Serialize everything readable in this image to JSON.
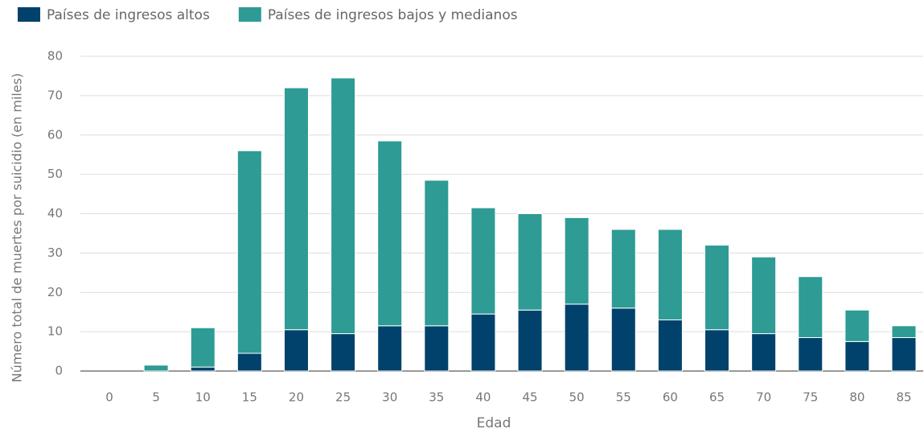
{
  "chart_data": {
    "type": "stacked_bar",
    "x_label": "Edad",
    "y_label": "Número total de muertes por suicidio (en miles)",
    "categories": [
      "0",
      "5",
      "10",
      "15",
      "20",
      "25",
      "30",
      "35",
      "40",
      "45",
      "50",
      "55",
      "60",
      "65",
      "70",
      "75",
      "80",
      "85"
    ],
    "series": [
      {
        "name": "Países de ingresos altos",
        "color": "#00426b",
        "values": [
          0,
          0,
          1,
          4.5,
          10.5,
          9.5,
          11.5,
          11.5,
          14.5,
          15.5,
          17,
          16,
          13,
          10.5,
          9.5,
          8.5,
          7.5,
          8.5
        ]
      },
      {
        "name": "Países de ingresos bajos y medianos",
        "color": "#2e9b95",
        "values": [
          0,
          1.5,
          10,
          51.5,
          61.5,
          65,
          47,
          37,
          27,
          24.5,
          22,
          20,
          23,
          21.5,
          19.5,
          15.5,
          8,
          3
        ]
      }
    ],
    "ylim": [
      0,
      80
    ],
    "yticks": [
      0,
      10,
      20,
      30,
      40,
      50,
      60,
      70,
      80
    ],
    "grid": true,
    "legend": "top-left"
  }
}
